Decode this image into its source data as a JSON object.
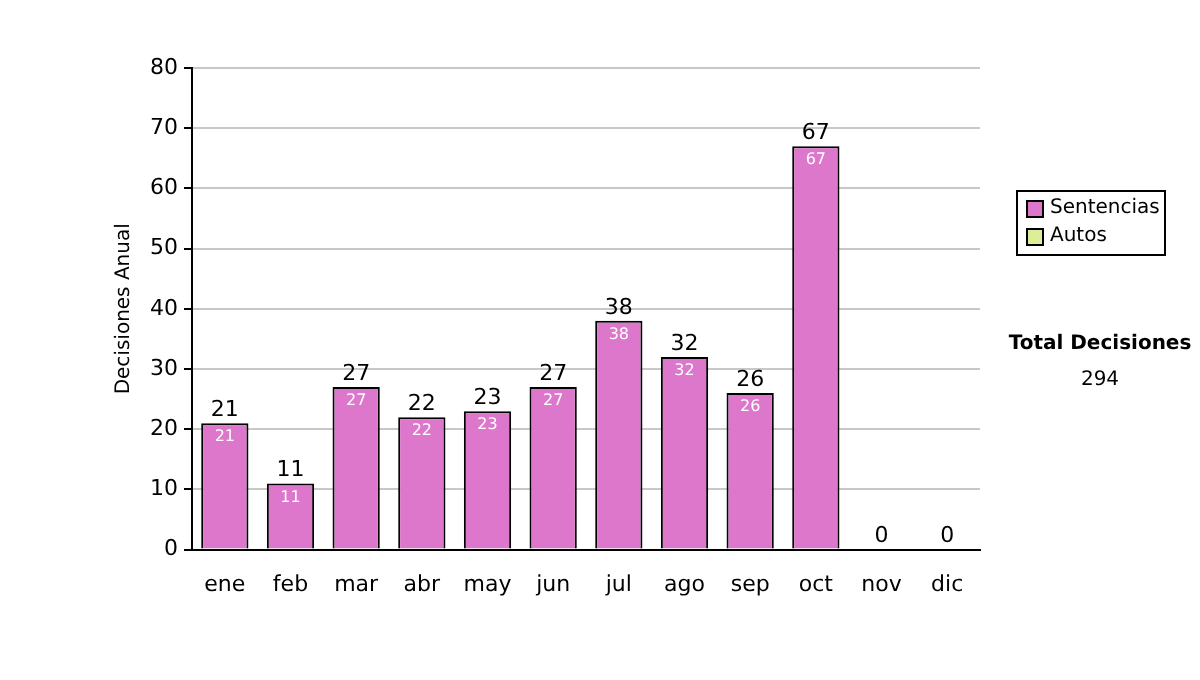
{
  "chart_data": {
    "type": "bar",
    "ylabel": "Decisiones Anual",
    "categories": [
      "ene",
      "feb",
      "mar",
      "abr",
      "may",
      "jun",
      "jul",
      "ago",
      "sep",
      "oct",
      "nov",
      "dic"
    ],
    "series": [
      {
        "name": "Sentencias",
        "color": "#dd77cc",
        "values": [
          21,
          11,
          27,
          22,
          23,
          27,
          38,
          32,
          26,
          67,
          0,
          0
        ],
        "value_labels": [
          "21",
          "11",
          "27",
          "22",
          "23",
          "27",
          "38",
          "32",
          "26",
          "67",
          null,
          null
        ]
      },
      {
        "name": "Autos",
        "color": "#ddee99",
        "values": [
          0,
          0,
          0,
          0,
          0,
          0,
          0,
          0,
          0,
          0,
          0,
          0
        ]
      }
    ],
    "stacked": true,
    "totals": [
      "21",
      "11",
      "27",
      "22",
      "23",
      "27",
      "38",
      "32",
      "26",
      "67",
      "0",
      "0"
    ],
    "ylim": [
      0,
      80
    ],
    "yticks": [
      0,
      10,
      20,
      30,
      40,
      50,
      60,
      70,
      80
    ],
    "grid": "y",
    "legend": "right",
    "annotations": [
      "Total Decisiones",
      "294"
    ]
  }
}
